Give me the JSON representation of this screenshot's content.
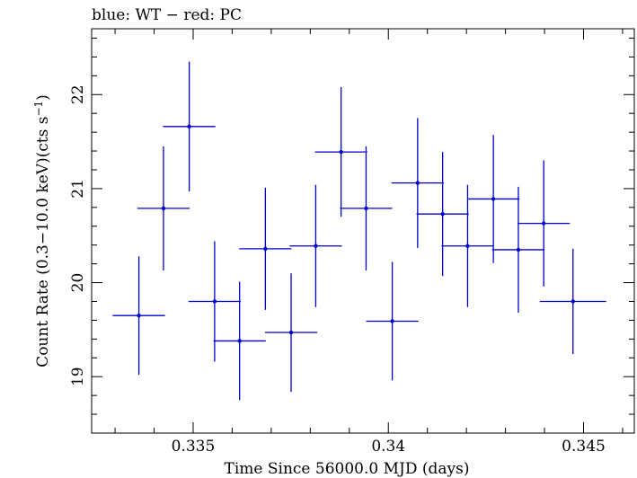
{
  "header": {
    "legend_text": "blue: WT − red: PC"
  },
  "colors": {
    "series": "#0000cc",
    "axis": "#000000",
    "background": "#ffffff"
  },
  "chart_data": {
    "type": "scatter",
    "title": "",
    "xlabel": "Time Since 56000.0 MJD (days)",
    "ylabel": "Count Rate (0.3−10.0 keV)(cts s⁻¹)",
    "xlim": [
      0.3324,
      0.3463
    ],
    "ylim": [
      18.4,
      22.7
    ],
    "x_ticks": [
      0.335,
      0.34,
      0.345
    ],
    "x_tick_labels": [
      "0.335",
      "0.34",
      "0.345"
    ],
    "y_ticks": [
      19,
      20,
      21,
      22
    ],
    "y_tick_labels": [
      "19",
      "20",
      "21",
      "22"
    ],
    "grid": false,
    "series": [
      {
        "name": "WT",
        "color": "#0000cc",
        "points": [
          {
            "x": 0.33361,
            "y": 19.65,
            "xerr": 0.00067,
            "yerr": 0.63
          },
          {
            "x": 0.33424,
            "y": 20.79,
            "xerr": 0.00067,
            "yerr": 0.66
          },
          {
            "x": 0.3349,
            "y": 21.66,
            "xerr": 0.00067,
            "yerr": 0.69
          },
          {
            "x": 0.33555,
            "y": 19.8,
            "xerr": 0.00067,
            "yerr": 0.64
          },
          {
            "x": 0.33619,
            "y": 19.38,
            "xerr": 0.00067,
            "yerr": 0.63
          },
          {
            "x": 0.33685,
            "y": 20.36,
            "xerr": 0.00067,
            "yerr": 0.65
          },
          {
            "x": 0.33751,
            "y": 19.47,
            "xerr": 0.00067,
            "yerr": 0.63
          },
          {
            "x": 0.33814,
            "y": 20.39,
            "xerr": 0.00067,
            "yerr": 0.65
          },
          {
            "x": 0.33879,
            "y": 21.39,
            "xerr": 0.00067,
            "yerr": 0.69
          },
          {
            "x": 0.33943,
            "y": 20.79,
            "xerr": 0.00067,
            "yerr": 0.66
          },
          {
            "x": 0.3401,
            "y": 19.59,
            "xerr": 0.00067,
            "yerr": 0.63
          },
          {
            "x": 0.34075,
            "y": 21.06,
            "xerr": 0.00067,
            "yerr": 0.69
          },
          {
            "x": 0.34139,
            "y": 20.73,
            "xerr": 0.00067,
            "yerr": 0.66
          },
          {
            "x": 0.34203,
            "y": 20.39,
            "xerr": 0.00067,
            "yerr": 0.65
          },
          {
            "x": 0.34269,
            "y": 20.89,
            "xerr": 0.00067,
            "yerr": 0.68
          },
          {
            "x": 0.34333,
            "y": 20.35,
            "xerr": 0.00067,
            "yerr": 0.67
          },
          {
            "x": 0.34398,
            "y": 20.63,
            "xerr": 0.00067,
            "yerr": 0.67
          },
          {
            "x": 0.34473,
            "y": 19.8,
            "xerr": 0.00085,
            "yerr": 0.56
          }
        ]
      }
    ]
  }
}
